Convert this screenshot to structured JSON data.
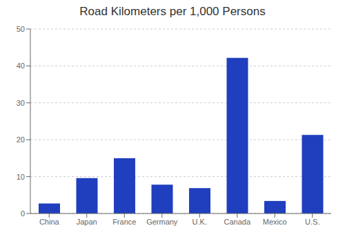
{
  "chart_data": {
    "type": "bar",
    "title": "Road Kilometers per 1,000 Persons",
    "categories": [
      "China",
      "Japan",
      "France",
      "Germany",
      "U.K.",
      "Canada",
      "Mexico",
      "U.S."
    ],
    "values": [
      2.7,
      9.6,
      15.0,
      7.8,
      6.9,
      42.2,
      3.4,
      21.3
    ],
    "color": "#1f3fbe",
    "ylim": [
      0,
      50
    ],
    "yticks": [
      0,
      10,
      20,
      30,
      40,
      50
    ],
    "grid": true
  }
}
